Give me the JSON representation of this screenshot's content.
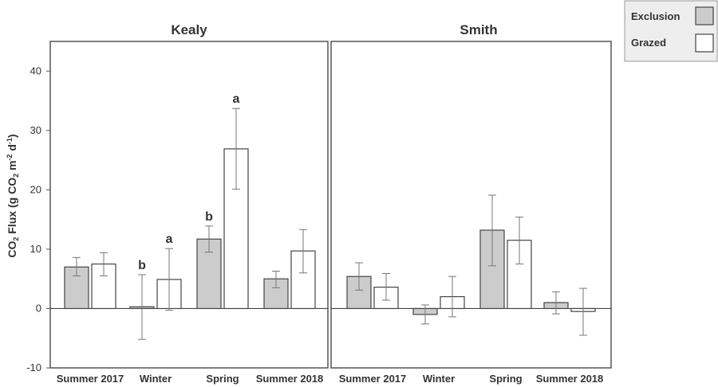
{
  "chart_data": {
    "type": "bar",
    "ylabel": {
      "main": "CO",
      "sub1": "2",
      "mid": " Flux (g CO",
      "sub2": "2",
      "mid2": " m",
      "sup1": "-2",
      "end": " d",
      "sup2": "-1",
      "close": ")"
    },
    "ylim": [
      -10,
      45
    ],
    "yticks": [
      -10,
      0,
      10,
      20,
      30,
      40
    ],
    "categories": [
      "Summer 2017",
      "Winter",
      "Spring",
      "Summer 2018"
    ],
    "legend": {
      "position": "top-right",
      "items": [
        {
          "label": "Exclusion",
          "color": "#cccccc"
        },
        {
          "label": "Grazed",
          "color": "#ffffff"
        }
      ]
    },
    "panels": [
      {
        "title": "Kealy",
        "series": [
          {
            "name": "Exclusion",
            "values": [
              7.0,
              0.3,
              11.7,
              5.0
            ],
            "err_low": [
              5.5,
              -5.2,
              9.5,
              3.5
            ],
            "err_high": [
              8.6,
              5.7,
              13.9,
              6.3
            ]
          },
          {
            "name": "Grazed",
            "values": [
              7.5,
              4.9,
              26.9,
              9.7
            ],
            "err_low": [
              5.5,
              -0.3,
              20.1,
              6.0
            ],
            "err_high": [
              9.4,
              10.1,
              33.7,
              13.3
            ]
          }
        ],
        "annotations": [
          {
            "series": 0,
            "category": 1,
            "text": "b"
          },
          {
            "series": 1,
            "category": 1,
            "text": "a"
          },
          {
            "series": 0,
            "category": 2,
            "text": "b"
          },
          {
            "series": 1,
            "category": 2,
            "text": "a"
          }
        ]
      },
      {
        "title": "Smith",
        "series": [
          {
            "name": "Exclusion",
            "values": [
              5.4,
              -1.0,
              13.2,
              1.0
            ],
            "err_low": [
              3.1,
              -2.6,
              7.2,
              -0.9
            ],
            "err_high": [
              7.7,
              0.6,
              19.1,
              2.8
            ]
          },
          {
            "name": "Grazed",
            "values": [
              3.6,
              2.0,
              11.5,
              -0.5
            ],
            "err_low": [
              1.4,
              -1.4,
              7.5,
              -4.5
            ],
            "err_high": [
              5.9,
              5.4,
              15.4,
              3.4
            ]
          }
        ],
        "annotations": []
      }
    ],
    "colors": {
      "exclusion": "#cccccc",
      "grazed": "#ffffff",
      "stroke": "#444444",
      "error": "#777777"
    }
  }
}
